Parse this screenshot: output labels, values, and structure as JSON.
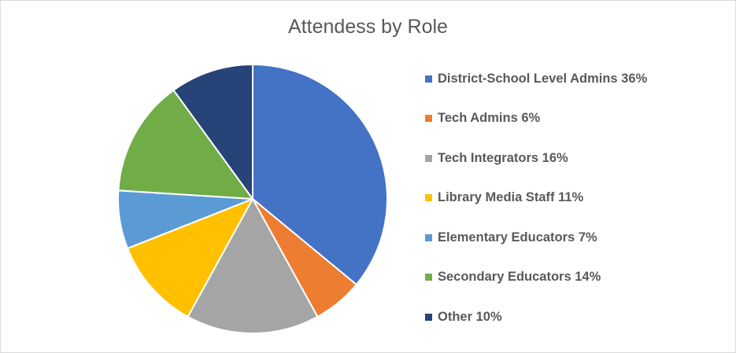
{
  "chart_data": {
    "type": "pie",
    "title": "Attendess by Role",
    "legend_position": "right",
    "slices": [
      {
        "label": "District-School Level Admins 36%",
        "value": 36,
        "color": "#4472c4"
      },
      {
        "label": "Tech Admins 6%",
        "value": 6,
        "color": "#ed7d31"
      },
      {
        "label": "Tech Integrators 16%",
        "value": 16,
        "color": "#a5a5a5"
      },
      {
        "label": "Library Media Staff 11%",
        "value": 11,
        "color": "#ffc000"
      },
      {
        "label": "Elementary Educators 7%",
        "value": 7,
        "color": "#5b9bd5"
      },
      {
        "label": "Secondary Educators 14%",
        "value": 14,
        "color": "#70ad47"
      },
      {
        "label": "Other 10%",
        "value": 10,
        "color": "#264478"
      }
    ]
  }
}
